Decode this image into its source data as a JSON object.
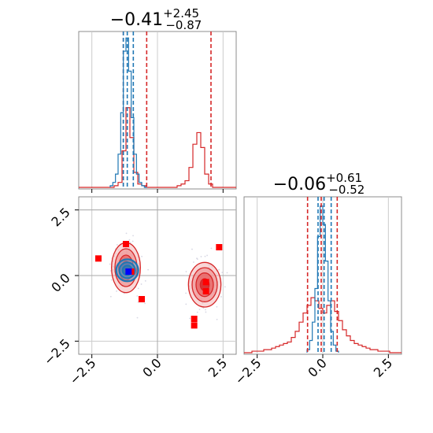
{
  "chart_data": {
    "type": "corner",
    "colors": {
      "red": "#d62728",
      "red_fill": "#f08080",
      "blue": "#1f77b4",
      "grid": "#cccccc",
      "marker_red": "#ff0000",
      "marker_blue": "#0000ff"
    },
    "grid": true,
    "range": [
      -3.0,
      3.0
    ],
    "ticks": [
      -2.5,
      0.0,
      2.5
    ],
    "tick_labels": [
      "−2.5",
      "0.0",
      "2.5"
    ],
    "panels": [
      {
        "id": "hist_x",
        "type": "histogram",
        "title_main": "−0.41",
        "title_sup": "+2.45",
        "title_sub": "−0.87",
        "series_red": {
          "bins": [
            -3.0,
            -2.85,
            -2.7,
            -2.55,
            -2.4,
            -2.25,
            -2.1,
            -1.95,
            -1.8,
            -1.65,
            -1.5,
            -1.35,
            -1.2,
            -1.05,
            -0.9,
            -0.75,
            -0.6,
            -0.45,
            -0.3,
            -0.15,
            0.0,
            0.15,
            0.3,
            0.45,
            0.6,
            0.75,
            0.9,
            1.05,
            1.2,
            1.35,
            1.5,
            1.65,
            1.8,
            1.95,
            2.1,
            2.25,
            2.4,
            2.55,
            2.7,
            2.85,
            3.0
          ],
          "counts": [
            0,
            0,
            0,
            0,
            0,
            0,
            0,
            0,
            0,
            1,
            3,
            22,
            48,
            30,
            9,
            2,
            1,
            0,
            0,
            0,
            0,
            0,
            0,
            0,
            0,
            1,
            2,
            4,
            12,
            26,
            33,
            24,
            8,
            2,
            0,
            0,
            0,
            0,
            0,
            0
          ]
        },
        "series_blue": {
          "bins": [
            -1.8,
            -1.7,
            -1.6,
            -1.5,
            -1.4,
            -1.3,
            -1.2,
            -1.1,
            -1.0,
            -0.9,
            -0.8,
            -0.7,
            -0.6,
            -0.5,
            -0.4
          ],
          "counts": [
            1,
            3,
            8,
            20,
            45,
            82,
            90,
            70,
            42,
            20,
            8,
            3,
            1,
            0
          ]
        },
        "quantiles_red": [
          -1.3,
          -0.41,
          2.04
        ],
        "quantiles_blue": [
          -1.3,
          -1.15,
          -0.92
        ],
        "ymax": 92
      },
      {
        "id": "scatter_xy",
        "type": "contour",
        "xlim": [
          -3.0,
          3.0
        ],
        "ylim": [
          -3.0,
          3.0
        ],
        "crosshair": {
          "x": 0.0,
          "y": 0.0
        },
        "hline": 2.5,
        "modes": [
          {
            "color": "red",
            "cx": -1.2,
            "cy": 0.3,
            "rx": [
              0.55,
              0.42,
              0.28,
              0.15
            ],
            "ry": [
              0.95,
              0.72,
              0.48,
              0.25
            ]
          },
          {
            "color": "red",
            "cx": 1.8,
            "cy": -0.35,
            "rx": [
              0.62,
              0.48,
              0.33,
              0.17
            ],
            "ry": [
              0.85,
              0.65,
              0.45,
              0.23
            ]
          },
          {
            "color": "blue",
            "cx": -1.15,
            "cy": 0.2,
            "rx": [
              0.42,
              0.3,
              0.18
            ],
            "ry": [
              0.42,
              0.3,
              0.18
            ]
          }
        ],
        "markers_red": [
          {
            "x": -2.25,
            "y": 0.65
          },
          {
            "x": -1.2,
            "y": 1.2
          },
          {
            "x": -0.6,
            "y": -0.9
          },
          {
            "x": 2.35,
            "y": 1.08
          },
          {
            "x": 1.85,
            "y": -0.25
          },
          {
            "x": 1.85,
            "y": -0.6
          },
          {
            "x": 1.4,
            "y": -1.65
          },
          {
            "x": 1.4,
            "y": -1.9
          },
          {
            "x": -1.0,
            "y": 0.15
          }
        ],
        "markers_blue": [
          {
            "x": -1.1,
            "y": 0.15
          }
        ]
      },
      {
        "id": "hist_y",
        "type": "histogram",
        "title_main": "−0.06",
        "title_sup": "+0.61",
        "title_sub": "−0.52",
        "series_red": {
          "bins": [
            -3.0,
            -2.85,
            -2.7,
            -2.55,
            -2.4,
            -2.25,
            -2.1,
            -1.95,
            -1.8,
            -1.65,
            -1.5,
            -1.35,
            -1.2,
            -1.05,
            -0.9,
            -0.75,
            -0.6,
            -0.45,
            -0.3,
            -0.15,
            0.0,
            0.15,
            0.3,
            0.45,
            0.6,
            0.75,
            0.9,
            1.05,
            1.2,
            1.35,
            1.5,
            1.65,
            1.8,
            1.95,
            2.1,
            2.25,
            2.4,
            2.55,
            2.7,
            2.85,
            3.0
          ],
          "counts": [
            0,
            0,
            1,
            1,
            1,
            2,
            2,
            3,
            4,
            5,
            6,
            7,
            10,
            14,
            20,
            26,
            31,
            36,
            34,
            29,
            26,
            31,
            34,
            27,
            21,
            15,
            11,
            8,
            6,
            5,
            4,
            3,
            2,
            2,
            1,
            1,
            1,
            0,
            0,
            0
          ]
        },
        "series_blue": {
          "bins": [
            -0.6,
            -0.5,
            -0.4,
            -0.3,
            -0.2,
            -0.1,
            0.0,
            0.1,
            0.2,
            0.3,
            0.4,
            0.5,
            0.6
          ],
          "counts": [
            2,
            8,
            20,
            42,
            76,
            96,
            84,
            60,
            34,
            14,
            5,
            1
          ]
        },
        "quantiles_red": [
          -0.58,
          -0.06,
          0.55
        ],
        "quantiles_blue": [
          -0.18,
          0.05,
          0.32
        ],
        "ymax": 100
      }
    ]
  }
}
